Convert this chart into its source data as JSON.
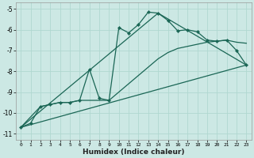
{
  "xlabel": "Humidex (Indice chaleur)",
  "bg_color": "#cce8e4",
  "grid_color": "#b0d8d0",
  "line_color": "#1a6655",
  "xlim": [
    -0.5,
    23.5
  ],
  "ylim": [
    -11.3,
    -4.7
  ],
  "xticks": [
    0,
    1,
    2,
    3,
    4,
    5,
    6,
    7,
    8,
    9,
    10,
    11,
    12,
    13,
    14,
    15,
    16,
    17,
    18,
    19,
    20,
    21,
    22,
    23
  ],
  "yticks": [
    -11,
    -10,
    -9,
    -8,
    -7,
    -6,
    -5
  ],
  "curve_main_x": [
    0,
    1,
    2,
    3,
    4,
    5,
    6,
    7,
    8,
    9,
    10,
    11,
    12,
    13,
    14,
    15,
    16,
    17,
    18,
    19,
    20,
    21,
    22,
    23
  ],
  "curve_main_y": [
    -10.7,
    -10.5,
    -9.7,
    -9.6,
    -9.5,
    -9.5,
    -9.4,
    -7.9,
    -9.3,
    -9.4,
    -5.9,
    -6.15,
    -5.75,
    -5.15,
    -5.2,
    -5.55,
    -6.05,
    -6.0,
    -6.1,
    -6.5,
    -6.55,
    -6.5,
    -7.0,
    -7.7
  ],
  "curve_smooth_x": [
    0,
    2,
    3,
    4,
    5,
    6,
    7,
    9,
    10,
    11,
    12,
    13,
    14,
    15,
    16,
    17,
    18,
    19,
    20,
    21,
    22,
    23
  ],
  "curve_smooth_y": [
    -10.7,
    -9.7,
    -9.6,
    -9.5,
    -9.5,
    -9.4,
    -9.4,
    -9.4,
    -9.0,
    -8.6,
    -8.2,
    -7.8,
    -7.4,
    -7.1,
    -6.9,
    -6.8,
    -6.7,
    -6.6,
    -6.55,
    -6.5,
    -6.6,
    -6.65
  ],
  "curve_line1_x": [
    0,
    23
  ],
  "curve_line1_y": [
    -10.7,
    -7.7
  ],
  "curve_line2_x": [
    0,
    14,
    23
  ],
  "curve_line2_y": [
    -10.7,
    -5.2,
    -7.7
  ]
}
